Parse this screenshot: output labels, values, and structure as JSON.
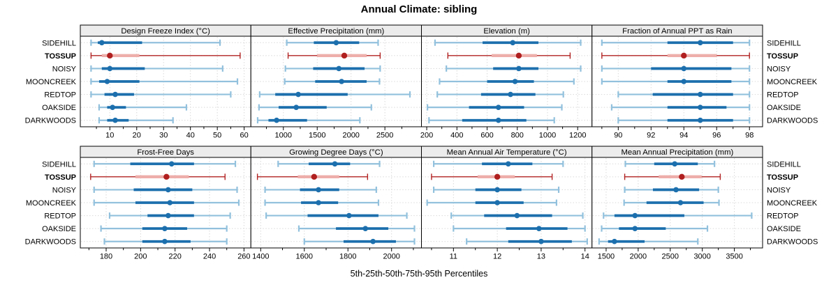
{
  "title": "Annual Climate: sibling",
  "caption": "5th-25th-50th-75th-95th Percentiles",
  "sites": [
    "SIDEHILL",
    "TOSSUP",
    "NOISY",
    "MOONCREEK",
    "REDTOP",
    "OAKSIDE",
    "DARKWOODS"
  ],
  "highlight_site": "TOSSUP",
  "colors": {
    "site": "#1c6fad",
    "site_light": "#92c1dd",
    "highlight": "#b22222",
    "highlight_light": "#eeaeaa",
    "highlight_dot": "#b01f1f",
    "grid": "#d9d9d9",
    "header_bg": "#ececec",
    "border": "#000000"
  },
  "chart_data": {
    "type": "scatter",
    "subtype": "percentile-interval-dotplot",
    "legend_position": "none",
    "grid": "dotted",
    "percentile_keys": [
      "p5",
      "p25",
      "p50",
      "p75",
      "p95"
    ],
    "panels": [
      {
        "title": "Design Freeze Index (°C)",
        "row": 0,
        "col": 0,
        "xlim": [
          -1,
          62.5
        ],
        "xticks": [
          10,
          20,
          30,
          40,
          50,
          60
        ],
        "series": [
          {
            "site": "SIDEHILL",
            "percentiles": [
              3,
              5.5,
              7,
              22,
              51
            ]
          },
          {
            "site": "TOSSUP",
            "percentiles": [
              3,
              7,
              10,
              21,
              58.5
            ]
          },
          {
            "site": "NOISY",
            "percentiles": [
              3,
              7,
              10,
              23,
              52
            ]
          },
          {
            "site": "MOONCREEK",
            "percentiles": [
              3,
              6,
              9,
              21,
              57.5
            ]
          },
          {
            "site": "REDTOP",
            "percentiles": [
              3,
              8,
              12,
              19,
              55
            ]
          },
          {
            "site": "OAKSIDE",
            "percentiles": [
              6,
              9,
              11,
              16,
              38.5
            ]
          },
          {
            "site": "DARKWOODS",
            "percentiles": [
              6,
              9,
              12,
              17,
              33.5
            ]
          }
        ]
      },
      {
        "title": "Effective Precipitation (mm)",
        "row": 0,
        "col": 1,
        "xlim": [
          520,
          3040
        ],
        "xticks": [
          1000,
          1500,
          2000,
          2500
        ],
        "series": [
          {
            "site": "SIDEHILL",
            "percentiles": [
              1050,
              1450,
              1780,
              2120,
              2400
            ]
          },
          {
            "site": "TOSSUP",
            "percentiles": [
              1070,
              1500,
              1900,
              2230,
              2430
            ]
          },
          {
            "site": "NOISY",
            "percentiles": [
              1030,
              1440,
              1820,
              2200,
              2430
            ]
          },
          {
            "site": "MOONCREEK",
            "percentiles": [
              1020,
              1470,
              1860,
              2230,
              2420
            ]
          },
          {
            "site": "REDTOP",
            "percentiles": [
              650,
              880,
              1220,
              1950,
              2870
            ]
          },
          {
            "site": "OAKSIDE",
            "percentiles": [
              640,
              930,
              1190,
              1640,
              2300
            ]
          },
          {
            "site": "DARKWOODS",
            "percentiles": [
              620,
              780,
              900,
              1350,
              2130
            ]
          }
        ]
      },
      {
        "title": "Elevation (m)",
        "row": 0,
        "col": 2,
        "xlim": [
          165,
          1295
        ],
        "xticks": [
          200,
          400,
          600,
          800,
          1000,
          1200
        ],
        "series": [
          {
            "site": "SIDEHILL",
            "percentiles": [
              255,
              570,
              770,
              940,
              1220
            ]
          },
          {
            "site": "TOSSUP",
            "percentiles": [
              340,
              630,
              810,
              930,
              1150
            ]
          },
          {
            "site": "NOISY",
            "percentiles": [
              330,
              640,
              810,
              940,
              1220
            ]
          },
          {
            "site": "MOONCREEK",
            "percentiles": [
              285,
              600,
              785,
              910,
              1175
            ]
          },
          {
            "site": "REDTOP",
            "percentiles": [
              270,
              560,
              755,
              920,
              1105
            ]
          },
          {
            "site": "OAKSIDE",
            "percentiles": [
              205,
              480,
              675,
              845,
              1095
            ]
          },
          {
            "site": "DARKWOODS",
            "percentiles": [
              215,
              435,
              675,
              860,
              1045
            ]
          }
        ]
      },
      {
        "title": "Fraction of Annual PPT as Rain",
        "row": 0,
        "col": 3,
        "xlim": [
          88.4,
          98.8
        ],
        "xticks": [
          90,
          92,
          94,
          96,
          98
        ],
        "series": [
          {
            "site": "SIDEHILL",
            "percentiles": [
              89,
              93,
              95,
              97,
              98
            ]
          },
          {
            "site": "TOSSUP",
            "percentiles": [
              89,
              93,
              94,
              96,
              98
            ]
          },
          {
            "site": "NOISY",
            "percentiles": [
              89,
              92,
              94,
              96.9,
              98
            ]
          },
          {
            "site": "MOONCREEK",
            "percentiles": [
              89,
              93,
              94,
              96.9,
              98
            ]
          },
          {
            "site": "REDTOP",
            "percentiles": [
              90,
              92.1,
              95,
              97,
              98
            ]
          },
          {
            "site": "OAKSIDE",
            "percentiles": [
              89.6,
              93,
              95,
              96.6,
              98
            ]
          },
          {
            "site": "DARKWOODS",
            "percentiles": [
              90,
              93,
              95,
              97,
              98
            ]
          }
        ]
      },
      {
        "title": "Frost-Free Days",
        "row": 1,
        "col": 0,
        "xlim": [
          165,
          264
        ],
        "xticks": [
          180,
          200,
          220,
          240,
          260
        ],
        "series": [
          {
            "site": "SIDEHILL",
            "percentiles": [
              173,
              194,
              218,
              231,
              255
            ]
          },
          {
            "site": "TOSSUP",
            "percentiles": [
              171,
              197,
              215,
              228,
              249
            ]
          },
          {
            "site": "NOISY",
            "percentiles": [
              173,
              196,
              216,
              230,
              256
            ]
          },
          {
            "site": "MOONCREEK",
            "percentiles": [
              173,
              197,
              217,
              231,
              257
            ]
          },
          {
            "site": "REDTOP",
            "percentiles": [
              182,
              204,
              216,
              231,
              252
            ]
          },
          {
            "site": "OAKSIDE",
            "percentiles": [
              177,
              201,
              214,
              227,
              250
            ]
          },
          {
            "site": "DARKWOODS",
            "percentiles": [
              179,
              201,
              214,
              229,
              250
            ]
          }
        ]
      },
      {
        "title": "Growing Degree Days (°C)",
        "row": 1,
        "col": 1,
        "xlim": [
          1355,
          2137
        ],
        "xticks": [
          1400,
          1600,
          1800,
          2000
        ],
        "series": [
          {
            "site": "SIDEHILL",
            "percentiles": [
              1480,
              1620,
              1740,
              1810,
              1945
            ]
          },
          {
            "site": "TOSSUP",
            "percentiles": [
              1385,
              1570,
              1645,
              1760,
              1890
            ]
          },
          {
            "site": "NOISY",
            "percentiles": [
              1420,
              1580,
              1665,
              1760,
              1930
            ]
          },
          {
            "site": "MOONCREEK",
            "percentiles": [
              1420,
              1585,
              1665,
              1755,
              1940
            ]
          },
          {
            "site": "REDTOP",
            "percentiles": [
              1425,
              1615,
              1805,
              1940,
              2070
            ]
          },
          {
            "site": "OAKSIDE",
            "percentiles": [
              1575,
              1745,
              1880,
              1985,
              2105
            ]
          },
          {
            "site": "DARKWOODS",
            "percentiles": [
              1600,
              1780,
              1915,
              2020,
              2105
            ]
          }
        ]
      },
      {
        "title": "Mean Annual Air Temperature (°C)",
        "row": 1,
        "col": 2,
        "xlim": [
          10.27,
          14.16
        ],
        "xticks": [
          11,
          12,
          13,
          14
        ],
        "series": [
          {
            "site": "SIDEHILL",
            "percentiles": [
              10.55,
              11.65,
              12.25,
              12.8,
              13.5
            ]
          },
          {
            "site": "TOSSUP",
            "percentiles": [
              10.5,
              11.55,
              12.0,
              12.4,
              13.25
            ]
          },
          {
            "site": "NOISY",
            "percentiles": [
              10.55,
              11.5,
              12.0,
              12.55,
              13.4
            ]
          },
          {
            "site": "MOONCREEK",
            "percentiles": [
              10.4,
              11.5,
              12.0,
              12.6,
              13.35
            ]
          },
          {
            "site": "REDTOP",
            "percentiles": [
              10.95,
              11.7,
              12.45,
              13.25,
              13.95
            ]
          },
          {
            "site": "OAKSIDE",
            "percentiles": [
              11.0,
              12.2,
              12.95,
              13.6,
              14.0
            ]
          },
          {
            "site": "DARKWOODS",
            "percentiles": [
              11.3,
              12.25,
              13.0,
              13.7,
              14.05
            ]
          }
        ]
      },
      {
        "title": "Mean Annual Precipitation (mm)",
        "row": 1,
        "col": 3,
        "xlim": [
          1280,
          3940
        ],
        "xticks": [
          1500,
          2000,
          2500,
          3000,
          3500
        ],
        "series": [
          {
            "site": "SIDEHILL",
            "percentiles": [
              1800,
              2250,
              2570,
              2930,
              3190
            ]
          },
          {
            "site": "TOSSUP",
            "percentiles": [
              1790,
              2320,
              2680,
              2990,
              3280
            ]
          },
          {
            "site": "NOISY",
            "percentiles": [
              1790,
              2230,
              2590,
              2950,
              3250
            ]
          },
          {
            "site": "MOONCREEK",
            "percentiles": [
              1780,
              2130,
              2660,
              3020,
              3260
            ]
          },
          {
            "site": "REDTOP",
            "percentiles": [
              1460,
              1630,
              1950,
              2720,
              3770
            ]
          },
          {
            "site": "OAKSIDE",
            "percentiles": [
              1430,
              1700,
              1950,
              2430,
              3080
            ]
          },
          {
            "site": "DARKWOODS",
            "percentiles": [
              1390,
              1530,
              1630,
              2100,
              2930
            ]
          }
        ]
      }
    ]
  }
}
